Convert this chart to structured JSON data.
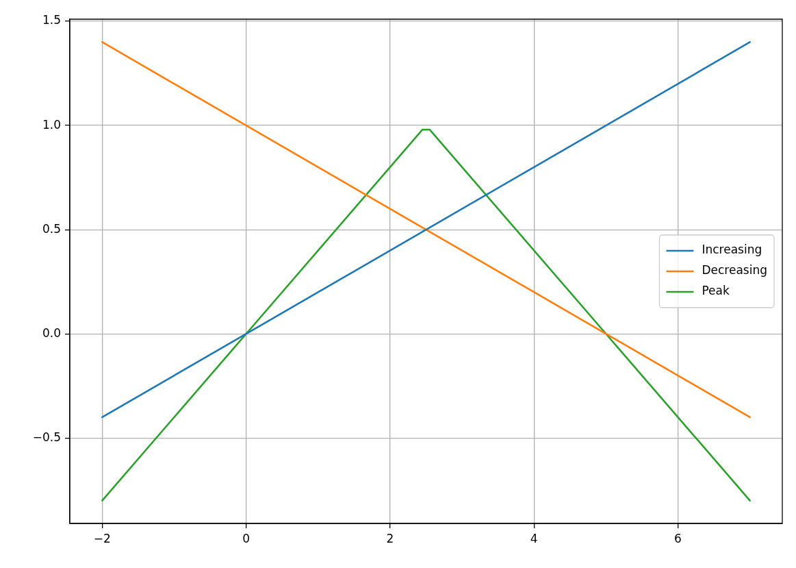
{
  "chart_data": {
    "type": "line",
    "series": [
      {
        "name": "Increasing",
        "color": "#1f77b4",
        "x": [
          -2,
          7
        ],
        "values": [
          -0.4,
          1.4
        ]
      },
      {
        "name": "Decreasing",
        "color": "#ff7f0e",
        "x": [
          -2,
          7
        ],
        "values": [
          1.4,
          -0.4
        ]
      },
      {
        "name": "Peak",
        "color": "#2ca02c",
        "x": [
          -2,
          0,
          2.45,
          2.55,
          5,
          7
        ],
        "values": [
          -0.8,
          0,
          0.98,
          0.98,
          0,
          -0.8
        ]
      }
    ],
    "xlim": [
      -2.45,
      7.45
    ],
    "ylim": [
      -0.91,
      1.51
    ],
    "xticks": [
      {
        "value": -2,
        "label": "−2"
      },
      0,
      2,
      4,
      6
    ],
    "yticks": [
      {
        "value": -0.5,
        "label": "−0.5"
      },
      {
        "value": 0,
        "label": "0.0"
      },
      0.5,
      {
        "value": 1,
        "label": "1.0"
      },
      1.5
    ],
    "grid": true,
    "legend": "right",
    "marker": "none",
    "line_style": "solid"
  }
}
